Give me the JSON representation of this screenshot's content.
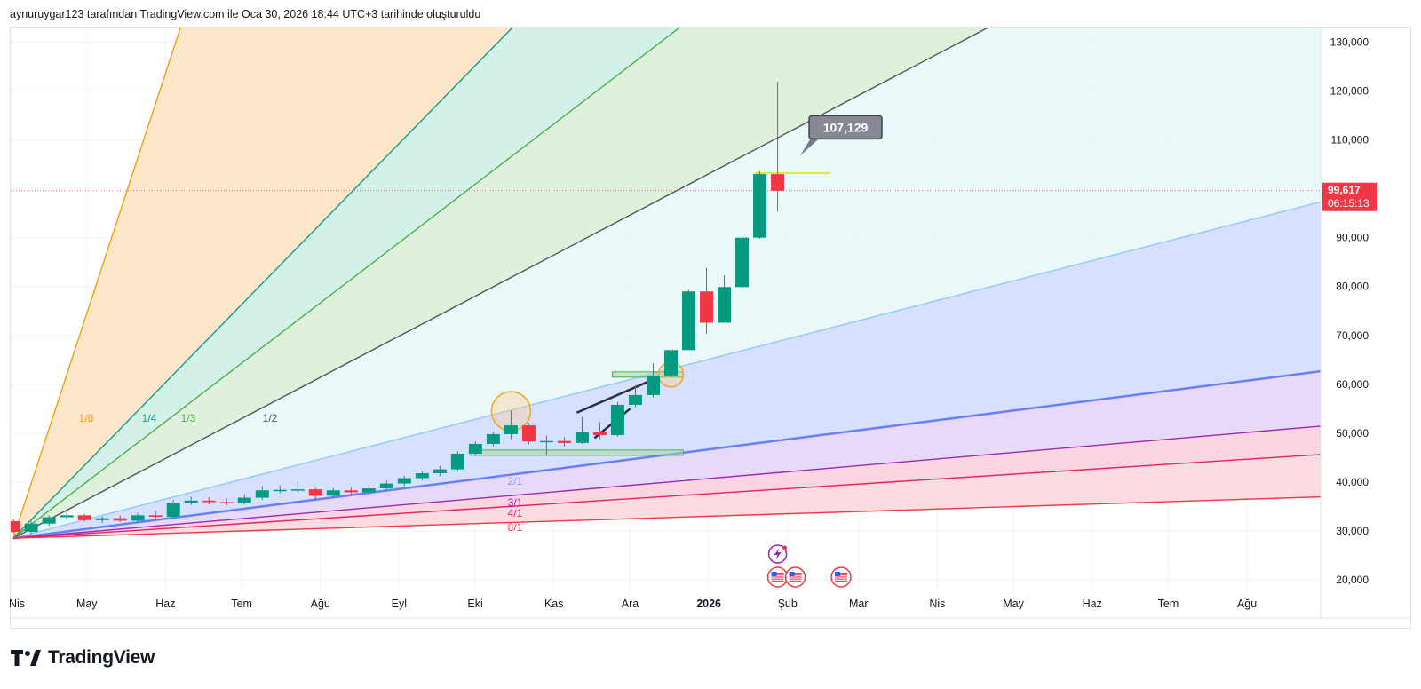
{
  "header": {
    "attribution": "aynuruygar123 tarafından TradingView.com ile Oca 30, 2026 18:44 UTC+3 tarihinde oluşturuldu"
  },
  "brand": {
    "name": "TradingView",
    "logo_icon": "tradingview-logo-icon"
  },
  "colors": {
    "up": "#089981",
    "down": "#f23645",
    "grid": "#f0f3fa",
    "axis_text": "#131722",
    "fan_1_8": "#f59e0b",
    "fan_1_4": "#0f9d8a",
    "fan_1_3": "#4caf50",
    "fan_1_2": "#555555",
    "fan_1_1": "#90caf9",
    "fan_2_1": "#6b7ff5",
    "fan_3_1": "#9c27b0",
    "fan_4_1": "#e91e63",
    "fan_8_1": "#f23645",
    "hline": "#e6e64a",
    "price_tag": "#f23645",
    "callout": "#787b86"
  },
  "chart_data": {
    "type": "candlestick",
    "symbol_currency_note": "",
    "x_axis": {
      "unit": "week",
      "range": [
        "2025-04-01",
        "2026-08-30"
      ],
      "tick_labels": [
        {
          "date": "2025-04-01",
          "label": "Nis"
        },
        {
          "date": "2025-05-01",
          "label": "May"
        },
        {
          "date": "2025-06-01",
          "label": "Haz"
        },
        {
          "date": "2025-07-01",
          "label": "Tem"
        },
        {
          "date": "2025-08-01",
          "label": "Ağu"
        },
        {
          "date": "2025-09-01",
          "label": "Eyl"
        },
        {
          "date": "2025-10-01",
          "label": "Eki"
        },
        {
          "date": "2025-11-01",
          "label": "Kas"
        },
        {
          "date": "2025-12-01",
          "label": "Ara"
        },
        {
          "date": "2026-01-01",
          "label": "2026",
          "bold": true
        },
        {
          "date": "2026-02-01",
          "label": "Şub"
        },
        {
          "date": "2026-03-01",
          "label": "Mar"
        },
        {
          "date": "2026-04-01",
          "label": "Nis"
        },
        {
          "date": "2026-05-01",
          "label": "May"
        },
        {
          "date": "2026-06-01",
          "label": "Haz"
        },
        {
          "date": "2026-07-01",
          "label": "Tem"
        },
        {
          "date": "2026-08-01",
          "label": "Ağu"
        }
      ]
    },
    "y_axis": {
      "range": [
        18000,
        133000
      ],
      "ticks": [
        20000,
        30000,
        40000,
        50000,
        60000,
        70000,
        80000,
        90000,
        100000,
        110000,
        120000,
        130000
      ],
      "tick_labels": [
        "20,000",
        "30,000",
        "40,000",
        "50,000",
        "60,000",
        "70,000",
        "80,000",
        "90,000",
        "100,000",
        "110,000",
        "120,000",
        "130,000"
      ],
      "grid": true
    },
    "candles": [
      {
        "date": "2025-03-31",
        "o": 32000,
        "h": 32500,
        "l": 29500,
        "c": 29800
      },
      {
        "date": "2025-04-07",
        "o": 29800,
        "h": 32000,
        "l": 29300,
        "c": 31500
      },
      {
        "date": "2025-04-14",
        "o": 31500,
        "h": 33200,
        "l": 31000,
        "c": 32800
      },
      {
        "date": "2025-04-21",
        "o": 32800,
        "h": 34000,
        "l": 32200,
        "c": 33200
      },
      {
        "date": "2025-04-28",
        "o": 33200,
        "h": 33500,
        "l": 31900,
        "c": 32200
      },
      {
        "date": "2025-05-05",
        "o": 32200,
        "h": 33000,
        "l": 31600,
        "c": 32600
      },
      {
        "date": "2025-05-12",
        "o": 32600,
        "h": 33200,
        "l": 31800,
        "c": 32100
      },
      {
        "date": "2025-05-19",
        "o": 32100,
        "h": 33700,
        "l": 31700,
        "c": 33200
      },
      {
        "date": "2025-05-26",
        "o": 33200,
        "h": 34100,
        "l": 32300,
        "c": 32900
      },
      {
        "date": "2025-06-02",
        "o": 32900,
        "h": 36300,
        "l": 32700,
        "c": 35800
      },
      {
        "date": "2025-06-09",
        "o": 35800,
        "h": 37000,
        "l": 35300,
        "c": 36200
      },
      {
        "date": "2025-06-16",
        "o": 36200,
        "h": 36900,
        "l": 35400,
        "c": 35900
      },
      {
        "date": "2025-06-23",
        "o": 35900,
        "h": 36700,
        "l": 35200,
        "c": 35700
      },
      {
        "date": "2025-06-30",
        "o": 35700,
        "h": 37400,
        "l": 35400,
        "c": 36800
      },
      {
        "date": "2025-07-07",
        "o": 36800,
        "h": 39200,
        "l": 36400,
        "c": 38300
      },
      {
        "date": "2025-07-14",
        "o": 38300,
        "h": 39300,
        "l": 37700,
        "c": 38400
      },
      {
        "date": "2025-07-21",
        "o": 38400,
        "h": 39900,
        "l": 37800,
        "c": 38500
      },
      {
        "date": "2025-07-28",
        "o": 38500,
        "h": 38800,
        "l": 36300,
        "c": 37200
      },
      {
        "date": "2025-08-04",
        "o": 37200,
        "h": 38800,
        "l": 36800,
        "c": 38300
      },
      {
        "date": "2025-08-11",
        "o": 38300,
        "h": 38900,
        "l": 37100,
        "c": 37900
      },
      {
        "date": "2025-08-18",
        "o": 37900,
        "h": 39400,
        "l": 37400,
        "c": 38700
      },
      {
        "date": "2025-08-25",
        "o": 38700,
        "h": 40300,
        "l": 38200,
        "c": 39700
      },
      {
        "date": "2025-09-01",
        "o": 39700,
        "h": 41300,
        "l": 39200,
        "c": 40800
      },
      {
        "date": "2025-09-08",
        "o": 40800,
        "h": 42200,
        "l": 40300,
        "c": 41800
      },
      {
        "date": "2025-09-15",
        "o": 41800,
        "h": 43300,
        "l": 41200,
        "c": 42600
      },
      {
        "date": "2025-09-22",
        "o": 42600,
        "h": 46300,
        "l": 42300,
        "c": 45800
      },
      {
        "date": "2025-09-29",
        "o": 45800,
        "h": 48300,
        "l": 45300,
        "c": 47800
      },
      {
        "date": "2025-10-06",
        "o": 47800,
        "h": 50300,
        "l": 47300,
        "c": 49800
      },
      {
        "date": "2025-10-13",
        "o": 49800,
        "h": 54600,
        "l": 48800,
        "c": 51600
      },
      {
        "date": "2025-10-20",
        "o": 51600,
        "h": 52100,
        "l": 47700,
        "c": 48300
      },
      {
        "date": "2025-10-27",
        "o": 48300,
        "h": 49500,
        "l": 45500,
        "c": 48400
      },
      {
        "date": "2025-11-03",
        "o": 48400,
        "h": 49200,
        "l": 47300,
        "c": 48000
      },
      {
        "date": "2025-11-10",
        "o": 48000,
        "h": 53300,
        "l": 47800,
        "c": 50200
      },
      {
        "date": "2025-11-17",
        "o": 50200,
        "h": 52300,
        "l": 48800,
        "c": 49600
      },
      {
        "date": "2025-11-24",
        "o": 49600,
        "h": 56300,
        "l": 49300,
        "c": 55800
      },
      {
        "date": "2025-12-01",
        "o": 55800,
        "h": 59800,
        "l": 55300,
        "c": 57800
      },
      {
        "date": "2025-12-08",
        "o": 57800,
        "h": 64300,
        "l": 57300,
        "c": 61800
      },
      {
        "date": "2025-12-15",
        "o": 61800,
        "h": 67300,
        "l": 61500,
        "c": 67000
      },
      {
        "date": "2025-12-22",
        "o": 67000,
        "h": 79300,
        "l": 67000,
        "c": 79000
      },
      {
        "date": "2025-12-29",
        "o": 79000,
        "h": 83800,
        "l": 70300,
        "c": 72600
      },
      {
        "date": "2026-01-05",
        "o": 72600,
        "h": 82300,
        "l": 72600,
        "c": 79900
      },
      {
        "date": "2026-01-12",
        "o": 79900,
        "h": 90300,
        "l": 79700,
        "c": 90000
      },
      {
        "date": "2026-01-19",
        "o": 90000,
        "h": 103600,
        "l": 89800,
        "c": 103000
      },
      {
        "date": "2026-01-26",
        "o": 103000,
        "h": 121900,
        "l": 95300,
        "c": 99617
      }
    ],
    "current_price": {
      "value": 99617,
      "label": "99,617",
      "countdown": "06:15:13"
    },
    "callout": {
      "label": "107,129",
      "value": 107129,
      "date": "2026-02-06"
    },
    "gann_fan": {
      "origin": {
        "date": "2025-04-02",
        "price": 28500
      },
      "lines": [
        {
          "ratio": "1/8",
          "label": "1/8",
          "through": {
            "date": "2025-06-05",
            "price": 130000
          }
        },
        {
          "ratio": "1/4",
          "label": "1/4",
          "through": {
            "date": "2025-10-10",
            "price": 130000
          }
        },
        {
          "ratio": "1/3",
          "label": "1/3",
          "through": {
            "date": "2025-12-13",
            "price": 130000
          }
        },
        {
          "ratio": "1/2",
          "label": "1/2",
          "through": {
            "date": "2026-04-10",
            "price": 130000
          }
        },
        {
          "ratio": "1/1",
          "label": "",
          "through": {
            "date": "2026-08-20",
            "price": 96000
          }
        },
        {
          "ratio": "2/1",
          "label": "2/1",
          "through": {
            "date": "2026-08-20",
            "price": 62000
          }
        },
        {
          "ratio": "3/1",
          "label": "3/1",
          "through": {
            "date": "2026-08-20",
            "price": 51000
          }
        },
        {
          "ratio": "4/1",
          "label": "4/1",
          "through": {
            "date": "2026-08-20",
            "price": 45300
          }
        },
        {
          "ratio": "8/1",
          "label": "8/1",
          "through": {
            "date": "2026-08-20",
            "price": 36800
          }
        }
      ]
    },
    "annotations": {
      "hlines": [
        {
          "name": "support-zone-46k",
          "from": "2025-09-29",
          "to": "2025-12-22",
          "price": 46000
        },
        {
          "name": "support-zone-62k",
          "from": "2025-11-24",
          "to": "2025-12-22",
          "price": 62000
        },
        {
          "name": "resistance-line-103k",
          "from": "2026-01-19",
          "to": "2026-02-18",
          "price": 103200
        }
      ],
      "circles": [
        {
          "date": "2025-10-13",
          "price": 54500
        },
        {
          "date": "2025-12-15",
          "price": 62000
        }
      ],
      "trend_segments": [
        {
          "from": {
            "date": "2025-11-10",
            "price": 54200
          },
          "to": {
            "date": "2025-12-08",
            "price": 60500
          }
        },
        {
          "from": {
            "date": "2025-11-17",
            "price": 49000
          },
          "to": {
            "date": "2025-12-01",
            "price": 55000
          }
        }
      ],
      "event_markers": [
        {
          "date": "2026-01-26",
          "icon": "earnings-icon"
        },
        {
          "date": "2026-01-26",
          "icon": "us-flag-icon"
        },
        {
          "date": "2026-02-02",
          "icon": "us-flag-icon"
        },
        {
          "date": "2026-02-20",
          "icon": "us-flag-icon"
        }
      ]
    }
  }
}
